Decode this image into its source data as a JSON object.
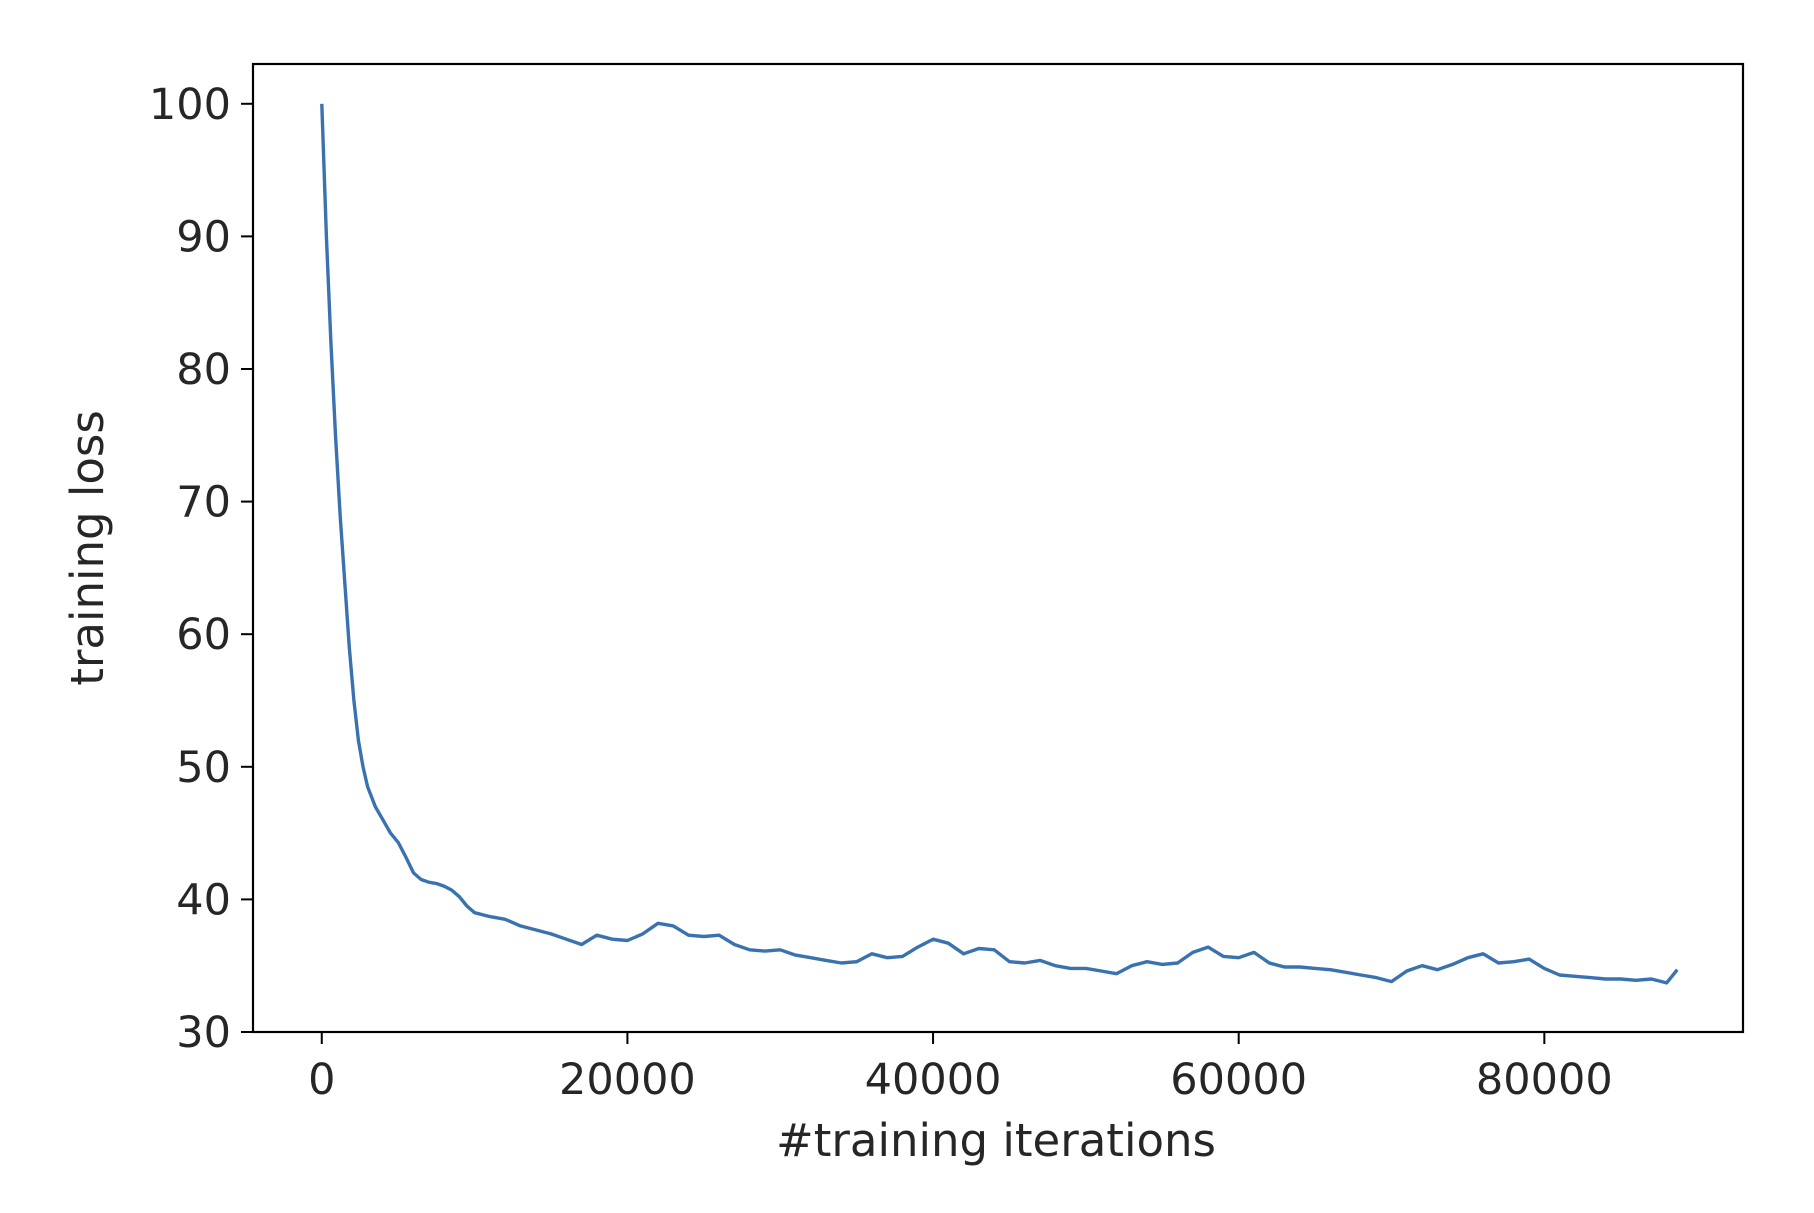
{
  "chart_data": {
    "type": "line",
    "title": "",
    "xlabel": "#training iterations",
    "ylabel": "training loss",
    "xlim": [
      -4500,
      93000
    ],
    "ylim": [
      30,
      103
    ],
    "xticks": [
      0,
      20000,
      40000,
      60000,
      80000
    ],
    "yticks": [
      30,
      40,
      50,
      60,
      70,
      80,
      90,
      100
    ],
    "grid": false,
    "legend": "none",
    "colors": {
      "line": "#3a72b0",
      "axes": "#000000",
      "text": "#262626",
      "background": "#ffffff"
    },
    "series": [
      {
        "x": [
          0,
          300,
          600,
          900,
          1200,
          1500,
          1800,
          2100,
          2400,
          2700,
          3000,
          3500,
          4000,
          4500,
          5000,
          5500,
          6000,
          6500,
          7000,
          7500,
          8000,
          8500,
          9000,
          9500,
          10000,
          11000,
          12000,
          13000,
          14000,
          15000,
          16000,
          17000,
          18000,
          19000,
          20000,
          21000,
          22000,
          23000,
          24000,
          25000,
          26000,
          27000,
          28000,
          29000,
          30000,
          31000,
          32000,
          33000,
          34000,
          35000,
          36000,
          37000,
          38000,
          39000,
          40000,
          41000,
          42000,
          43000,
          44000,
          45000,
          46000,
          47000,
          48000,
          49000,
          50000,
          51000,
          52000,
          53000,
          54000,
          55000,
          56000,
          57000,
          58000,
          59000,
          60000,
          61000,
          62000,
          63000,
          64000,
          65000,
          66000,
          67000,
          68000,
          69000,
          70000,
          71000,
          72000,
          73000,
          74000,
          75000,
          76000,
          77000,
          78000,
          79000,
          80000,
          81000,
          82000,
          83000,
          84000,
          85000,
          86000,
          87000,
          88000,
          88700
        ],
        "values": [
          100,
          90,
          82,
          75,
          69,
          64,
          59,
          55,
          52,
          50,
          48.5,
          47,
          46,
          45,
          44.3,
          43.2,
          42,
          41.5,
          41.3,
          41.2,
          41,
          40.7,
          40.2,
          39.5,
          39,
          38.7,
          38.5,
          38,
          37.7,
          37.4,
          37,
          36.6,
          37.3,
          37,
          36.9,
          37.4,
          38.2,
          38,
          37.3,
          37.2,
          37.3,
          36.6,
          36.2,
          36.1,
          36.2,
          35.8,
          35.6,
          35.4,
          35.2,
          35.3,
          35.9,
          35.6,
          35.7,
          36.4,
          37,
          36.7,
          35.9,
          36.3,
          36.2,
          35.3,
          35.2,
          35.4,
          35,
          34.8,
          34.8,
          34.6,
          34.4,
          35,
          35.3,
          35.1,
          35.2,
          36,
          36.4,
          35.7,
          35.6,
          36,
          35.2,
          34.9,
          34.9,
          34.8,
          34.7,
          34.5,
          34.3,
          34.1,
          33.8,
          34.6,
          35,
          34.7,
          35.1,
          35.6,
          35.9,
          35.2,
          35.3,
          35.5,
          34.8,
          34.3,
          34.2,
          34.1,
          34,
          34,
          33.9,
          34,
          33.7,
          34.7
        ]
      }
    ]
  }
}
